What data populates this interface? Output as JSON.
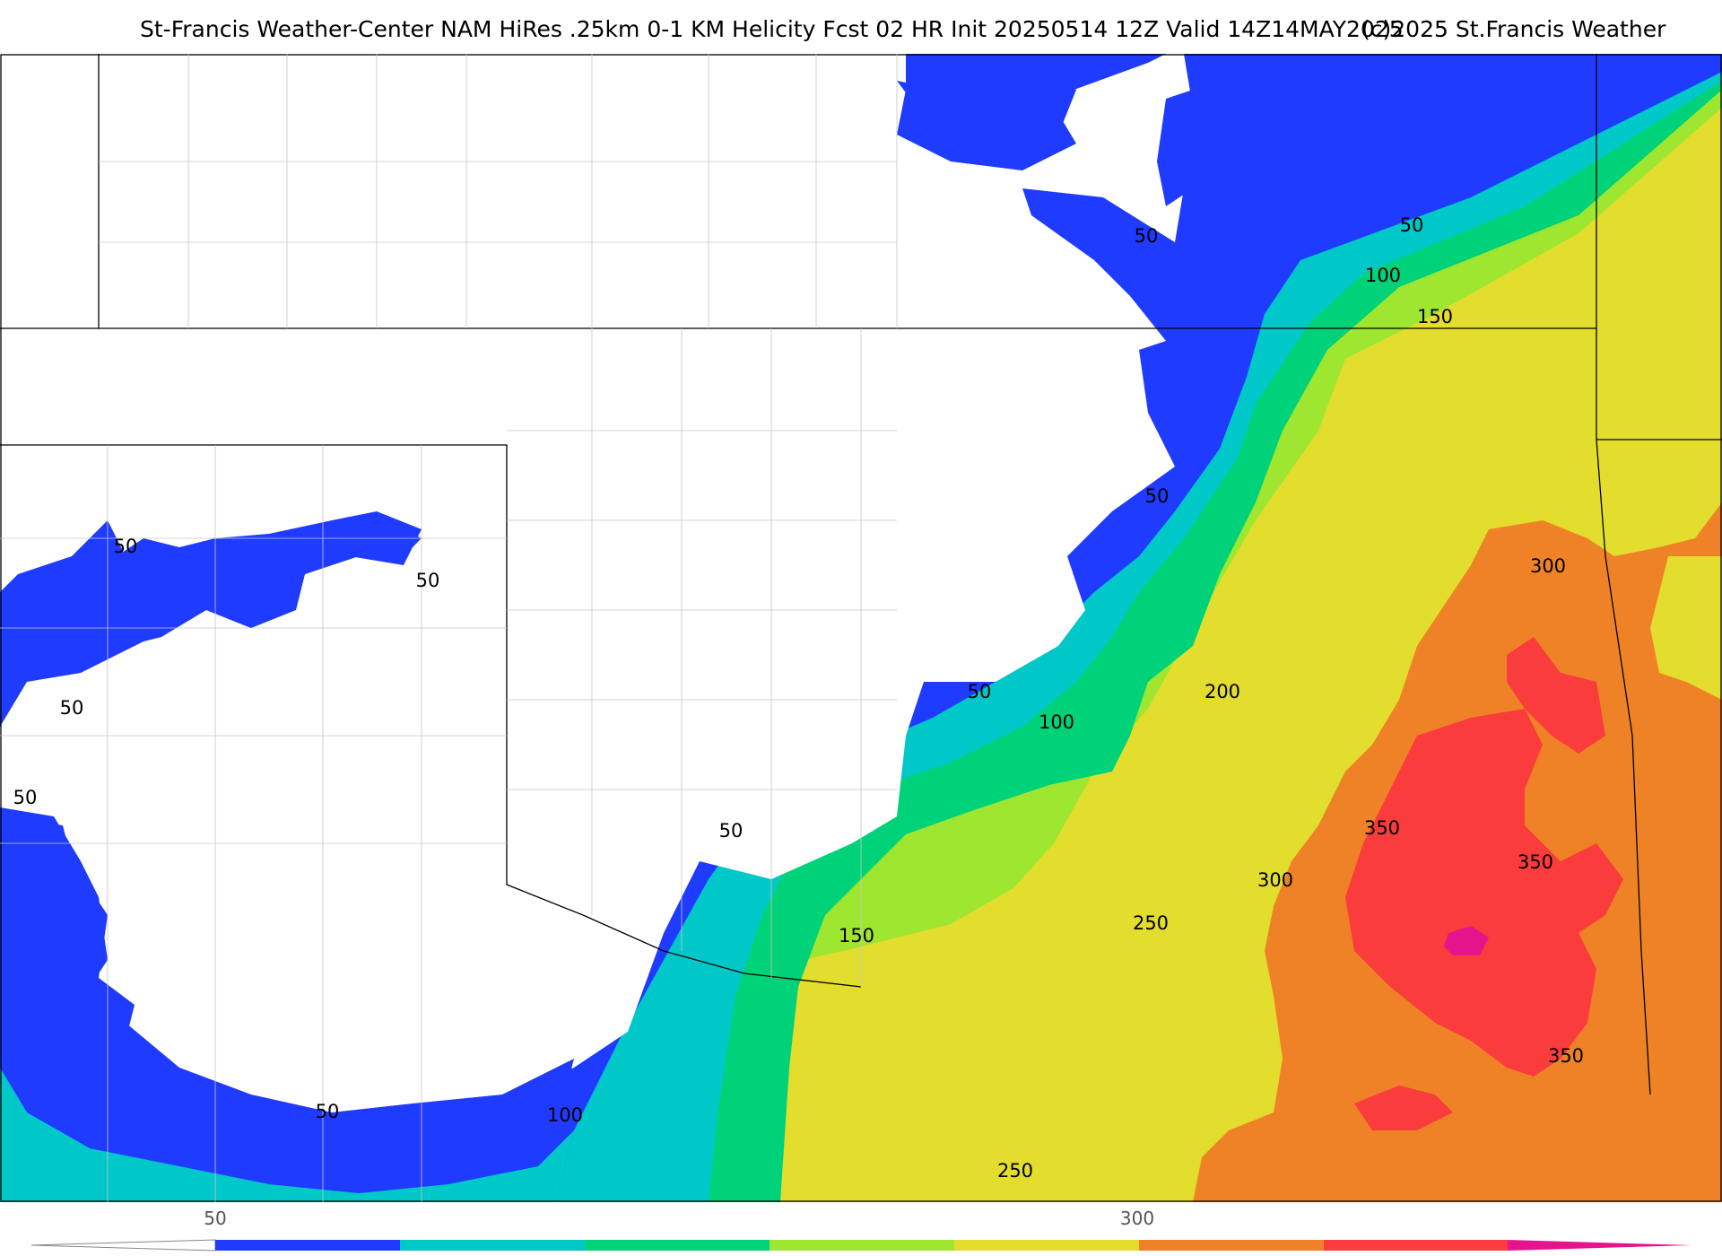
{
  "title": {
    "main": "St-Francis Weather-Center NAM HiRes .25km 0-1 KM Helicity Fcst 02 HR Init 20250514 12Z  Valid 14Z14MAY2025",
    "copyright": "(c)2025 St.Francis Weather"
  },
  "colors": {
    "bin_50_100": "#1f3bff",
    "bin_100_150": "#00c8c8",
    "bin_150_200": "#00d27a",
    "bin_200_250": "#9ee630",
    "bin_250_300": "#e3dd2e",
    "bin_300_350": "#ef8226",
    "bin_350_400": "#fa3c3c",
    "bin_400_plus": "#e6148c",
    "background": "#ffffff",
    "contour_line": "#000000"
  },
  "contour_labels": [
    "50",
    "50",
    "50",
    "50",
    "50",
    "50",
    "50",
    "50",
    "50",
    "50",
    "100",
    "100",
    "100",
    "150",
    "150",
    "200",
    "250",
    "250",
    "300",
    "300",
    "350",
    "350",
    "350"
  ],
  "colorbar": {
    "labels": [
      "50",
      "300"
    ],
    "segment_colors": [
      "#1f3bff",
      "#00c8c8",
      "#00d27a",
      "#9ee630",
      "#e3dd2e",
      "#ef8226",
      "#fa3c3c",
      "#e6148c"
    ]
  }
}
